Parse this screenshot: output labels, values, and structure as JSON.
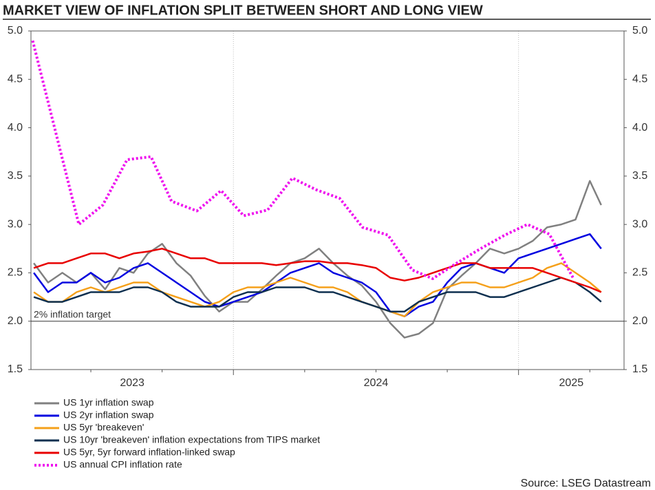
{
  "chart_data": {
    "type": "line",
    "title": "MARKET VIEW OF INFLATION SPLIT BETWEEN SHORT AND LONG VIEW",
    "source": "Source: LSEG Datastream",
    "xlim": [
      2023.29,
      2025.37
    ],
    "xticks": [
      {
        "value": 2023,
        "label": "2023"
      },
      {
        "value": 2024,
        "label": "2024"
      },
      {
        "value": 2025,
        "label": "2025"
      }
    ],
    "xminorticks": [
      2023.5,
      2023.75,
      2024.25,
      2024.5,
      2024.75,
      2025.25
    ],
    "ylim": [
      1.5,
      5
    ],
    "yticks": [
      {
        "value": 1.5,
        "label": "1.5"
      },
      {
        "value": 2,
        "label": "2.0"
      },
      {
        "value": 2.5,
        "label": "2.5"
      },
      {
        "value": 3,
        "label": "3.0"
      },
      {
        "value": 3.5,
        "label": "3.5"
      },
      {
        "value": 4,
        "label": "4.0"
      },
      {
        "value": 4.5,
        "label": "4.5"
      },
      {
        "value": 5,
        "label": "5.0"
      }
    ],
    "y2lim": [
      1.5,
      5
    ],
    "y2ticks": [
      {
        "value": 1.5,
        "label": "1.5"
      },
      {
        "value": 2,
        "label": "2.0"
      },
      {
        "value": 2.5,
        "label": "2.5"
      },
      {
        "value": 3,
        "label": "3.0"
      },
      {
        "value": 3.5,
        "label": "3.5"
      },
      {
        "value": 4,
        "label": "4.0"
      },
      {
        "value": 4.5,
        "label": "4.5"
      },
      {
        "value": 5,
        "label": "5.0"
      }
    ],
    "grid": "x",
    "target_line": {
      "value": 2,
      "label": "2% inflation target"
    },
    "x": [
      2023.3,
      2023.35,
      2023.4,
      2023.45,
      2023.5,
      2023.55,
      2023.6,
      2023.65,
      2023.7,
      2023.75,
      2023.8,
      2023.85,
      2023.9,
      2023.95,
      2024.0,
      2024.05,
      2024.1,
      2024.15,
      2024.2,
      2024.25,
      2024.3,
      2024.35,
      2024.4,
      2024.45,
      2024.5,
      2024.55,
      2024.6,
      2024.65,
      2024.7,
      2024.75,
      2024.8,
      2024.85,
      2024.9,
      2024.95,
      2025.0,
      2025.05,
      2025.1,
      2025.15,
      2025.2,
      2025.25,
      2025.29
    ],
    "series": [
      {
        "name": "US 1yr inflation swap",
        "color": "#808080",
        "values": [
          2.6,
          2.4,
          2.5,
          2.4,
          2.5,
          2.33,
          2.55,
          2.5,
          2.7,
          2.8,
          2.6,
          2.47,
          2.26,
          2.1,
          2.2,
          2.2,
          2.33,
          2.47,
          2.6,
          2.65,
          2.75,
          2.6,
          2.47,
          2.37,
          2.2,
          1.98,
          1.83,
          1.87,
          1.98,
          2.33,
          2.47,
          2.6,
          2.75,
          2.7,
          2.75,
          2.83,
          2.97,
          3.0,
          3.05,
          3.45,
          3.2
        ]
      },
      {
        "name": "US 2yr inflation swap",
        "color": "#0000e0",
        "values": [
          2.5,
          2.3,
          2.4,
          2.4,
          2.5,
          2.4,
          2.45,
          2.55,
          2.6,
          2.5,
          2.4,
          2.3,
          2.2,
          2.15,
          2.2,
          2.25,
          2.3,
          2.4,
          2.5,
          2.55,
          2.6,
          2.5,
          2.45,
          2.4,
          2.3,
          2.1,
          2.05,
          2.15,
          2.2,
          2.4,
          2.55,
          2.6,
          2.55,
          2.5,
          2.65,
          2.7,
          2.75,
          2.8,
          2.85,
          2.9,
          2.75
        ]
      },
      {
        "name": "US 5yr 'breakeven'",
        "color": "#f5a01a",
        "values": [
          2.3,
          2.2,
          2.2,
          2.3,
          2.35,
          2.3,
          2.35,
          2.4,
          2.4,
          2.3,
          2.25,
          2.2,
          2.15,
          2.2,
          2.3,
          2.35,
          2.35,
          2.4,
          2.45,
          2.4,
          2.35,
          2.35,
          2.3,
          2.2,
          2.15,
          2.1,
          2.05,
          2.2,
          2.3,
          2.35,
          2.4,
          2.4,
          2.35,
          2.35,
          2.4,
          2.45,
          2.55,
          2.6,
          2.5,
          2.4,
          2.3
        ]
      },
      {
        "name": "US 10yr 'breakeven' inflation expectations from TIPS market",
        "color": "#0d2f4f",
        "values": [
          2.25,
          2.2,
          2.2,
          2.25,
          2.3,
          2.3,
          2.3,
          2.35,
          2.35,
          2.3,
          2.2,
          2.15,
          2.15,
          2.15,
          2.25,
          2.3,
          2.3,
          2.35,
          2.35,
          2.35,
          2.3,
          2.3,
          2.25,
          2.2,
          2.15,
          2.1,
          2.1,
          2.2,
          2.25,
          2.3,
          2.3,
          2.3,
          2.25,
          2.25,
          2.3,
          2.35,
          2.4,
          2.45,
          2.4,
          2.3,
          2.2
        ]
      },
      {
        "name": "US 5yr, 5yr forward inflation-linked swap",
        "color": "#e80000",
        "values": [
          2.55,
          2.6,
          2.6,
          2.65,
          2.7,
          2.7,
          2.65,
          2.7,
          2.72,
          2.75,
          2.7,
          2.65,
          2.65,
          2.6,
          2.6,
          2.6,
          2.6,
          2.58,
          2.6,
          2.62,
          2.62,
          2.6,
          2.6,
          2.58,
          2.55,
          2.45,
          2.42,
          2.45,
          2.5,
          2.55,
          2.6,
          2.6,
          2.55,
          2.55,
          2.55,
          2.55,
          2.5,
          2.45,
          2.4,
          2.35,
          2.3
        ]
      },
      {
        "name": "US annual CPI inflation rate",
        "color": "#ee11ee",
        "dash": "dotted",
        "x": [
          2023.296,
          2023.458,
          2023.542,
          2023.627,
          2023.711,
          2023.783,
          2023.872,
          2023.957,
          2024.036,
          2024.12,
          2024.207,
          2024.289,
          2024.373,
          2024.453,
          2024.542,
          2024.627,
          2024.699,
          2024.783,
          2024.867,
          2024.952,
          2025.031,
          2025.108,
          2025.193
        ],
        "values": [
          4.9,
          3.0,
          3.2,
          3.67,
          3.7,
          3.24,
          3.14,
          3.35,
          3.09,
          3.15,
          3.48,
          3.36,
          3.27,
          2.97,
          2.89,
          2.53,
          2.44,
          2.6,
          2.75,
          2.89,
          3.0,
          2.9,
          2.44
        ]
      }
    ]
  }
}
